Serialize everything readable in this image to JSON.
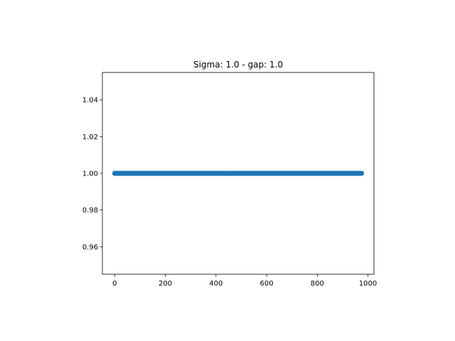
{
  "chart_data": {
    "type": "scatter",
    "title": "Sigma: 1.0 - gap: 1.0",
    "xlabel": "",
    "ylabel": "",
    "xlim": [
      -48.75,
      1023.75
    ],
    "ylim": [
      0.945,
      1.055
    ],
    "x_ticks": [
      0,
      200,
      400,
      600,
      800,
      1000
    ],
    "x_tick_labels": [
      "0",
      "200",
      "400",
      "600",
      "800",
      "1000"
    ],
    "y_ticks": [
      0.96,
      0.98,
      1.0,
      1.02,
      1.04
    ],
    "y_tick_labels": [
      "0.96",
      "0.98",
      "1.00",
      "1.02",
      "1.04"
    ],
    "grid": false,
    "series": [
      {
        "x_start": 0,
        "x_end": 975,
        "x_step": 1,
        "y": 1.0,
        "color": "#1f77b4"
      }
    ]
  }
}
